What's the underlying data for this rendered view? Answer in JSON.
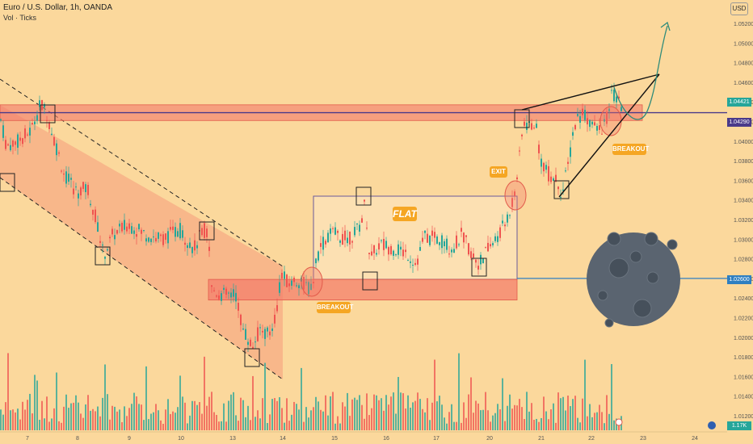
{
  "header": {
    "title": "Euro / U.S. Dollar, 1h, OANDA",
    "indicator": "Vol · Ticks",
    "currency": "USD"
  },
  "price_tags": {
    "current": "1.04421",
    "level_main": "1.04290",
    "level_low": "1.02600",
    "volume": "1.17K"
  },
  "annotations": {
    "flat": "FLAT",
    "exit": "EXIT",
    "breakout_1": "BREAKOUT",
    "breakout_2": "BREAKOUT"
  },
  "colors": {
    "background": "#fbd89c",
    "up": "#26a69a",
    "down": "#ef5350",
    "zone": "#f47a6a",
    "level_line": "#4a3a8a",
    "level_low_line": "#2f7fc1",
    "moon": "#5a6470",
    "pill": "#f5a623",
    "arrow": "#2e8b7a"
  },
  "chart_data": {
    "type": "candlestick",
    "symbol": "EUR/USD",
    "timeframe": "1h",
    "x_ticks": [
      "7",
      "8",
      "9",
      "10",
      "13",
      "14",
      "15",
      "16",
      "17",
      "20",
      "21",
      "22",
      "23",
      "24"
    ],
    "y_ticks": [
      "1.05200",
      "1.05000",
      "1.04800",
      "1.04600",
      "1.04400",
      "1.04200",
      "1.04000",
      "1.03800",
      "1.03600",
      "1.03400",
      "1.03200",
      "1.03000",
      "1.02800",
      "1.02600",
      "1.02400",
      "1.02200",
      "1.02000",
      "1.01800",
      "1.01600",
      "1.01400",
      "1.01200"
    ],
    "ylim": [
      1.0115,
      1.0535
    ],
    "price_path": [
      [
        0,
        1.0425
      ],
      [
        8,
        1.0395
      ],
      [
        22,
        1.04
      ],
      [
        38,
        1.041
      ],
      [
        50,
        1.0438
      ],
      [
        58,
        1.0428
      ],
      [
        66,
        1.0405
      ],
      [
        80,
        1.0365
      ],
      [
        95,
        1.0348
      ],
      [
        108,
        1.0353
      ],
      [
        120,
        1.0318
      ],
      [
        128,
        1.0283
      ],
      [
        140,
        1.0305
      ],
      [
        160,
        1.0315
      ],
      [
        180,
        1.0305
      ],
      [
        200,
        1.03
      ],
      [
        222,
        1.031
      ],
      [
        240,
        1.029
      ],
      [
        252,
        1.031
      ],
      [
        258,
        1.0305
      ],
      [
        262,
        1.025
      ],
      [
        275,
        1.0243
      ],
      [
        292,
        1.0243
      ],
      [
        300,
        1.021
      ],
      [
        312,
        1.019
      ],
      [
        322,
        1.0208
      ],
      [
        333,
        1.0202
      ],
      [
        342,
        1.0225
      ],
      [
        348,
        1.0265
      ],
      [
        356,
        1.0255
      ],
      [
        372,
        1.0258
      ],
      [
        385,
        1.0248
      ],
      [
        395,
        1.029
      ],
      [
        410,
        1.0307
      ],
      [
        430,
        1.03
      ],
      [
        444,
        1.031
      ],
      [
        452,
        1.0337
      ],
      [
        458,
        1.028
      ],
      [
        470,
        1.0295
      ],
      [
        490,
        1.029
      ],
      [
        505,
        1.0285
      ],
      [
        515,
        1.0275
      ],
      [
        525,
        1.0302
      ],
      [
        545,
        1.03
      ],
      [
        560,
        1.029
      ],
      [
        572,
        1.0305
      ],
      [
        585,
        1.0283
      ],
      [
        594,
        1.0275
      ],
      [
        600,
        1.0285
      ],
      [
        612,
        1.0298
      ],
      [
        625,
        1.0315
      ],
      [
        635,
        1.034
      ],
      [
        642,
        1.0375
      ],
      [
        648,
        1.042
      ],
      [
        656,
        1.0415
      ],
      [
        662,
        1.042
      ],
      [
        670,
        1.038
      ],
      [
        680,
        1.0365
      ],
      [
        690,
        1.036
      ],
      [
        696,
        1.0345
      ],
      [
        704,
        1.038
      ],
      [
        712,
        1.042
      ],
      [
        722,
        1.043
      ],
      [
        730,
        1.042
      ],
      [
        740,
        1.041
      ],
      [
        750,
        1.0418
      ],
      [
        758,
        1.045
      ],
      [
        764,
        1.044
      ],
      [
        770,
        1.0435
      ]
    ],
    "levels": [
      1.0429,
      1.026
    ],
    "zones": [
      {
        "label": "resistance",
        "price_top": 1.0437,
        "price_bottom": 1.0421
      },
      {
        "label": "support",
        "price_top": 1.0259,
        "price_bottom": 1.0238
      }
    ],
    "annotations": [
      "FLAT",
      "EXIT",
      "BREAKOUT",
      "BREAKOUT"
    ],
    "volume_label": "1.17K"
  }
}
